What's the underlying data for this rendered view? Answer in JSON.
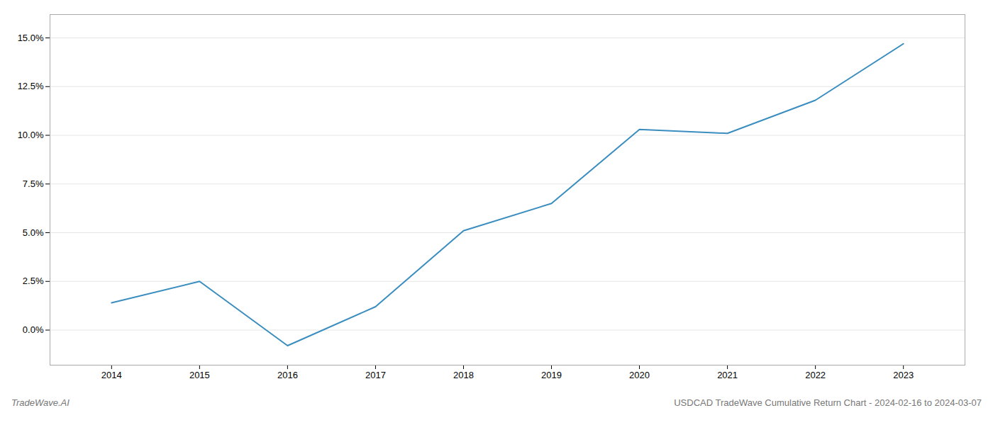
{
  "chart_data": {
    "type": "line",
    "title": "USDCAD TradeWave Cumulative Return Chart - 2024-02-16 to 2024-03-07",
    "annotations": [
      "TradeWave.AI"
    ],
    "x": [
      2014,
      2015,
      2016,
      2017,
      2018,
      2019,
      2020,
      2021,
      2022,
      2023
    ],
    "values": [
      0.014,
      0.025,
      -0.008,
      0.012,
      0.051,
      0.065,
      0.103,
      0.101,
      0.118,
      0.147
    ],
    "color": "#3a8dbf",
    "xlim": [
      2013.3,
      2023.7
    ],
    "xticks": [
      2014,
      2015,
      2016,
      2017,
      2018,
      2019,
      2020,
      2021,
      2022,
      2023
    ],
    "ylim": [
      -0.018,
      0.162
    ],
    "yticks": [
      {
        "value": 0.0,
        "label": "0.0%"
      },
      {
        "value": 0.025,
        "label": "2.5%"
      },
      {
        "value": 0.05,
        "label": "5.0%"
      },
      {
        "value": 0.075,
        "label": "7.5%"
      },
      {
        "value": 0.1,
        "label": "10.0%"
      },
      {
        "value": 0.125,
        "label": "12.5%"
      },
      {
        "value": 0.15,
        "label": "15.0%"
      }
    ],
    "grid": "y"
  }
}
